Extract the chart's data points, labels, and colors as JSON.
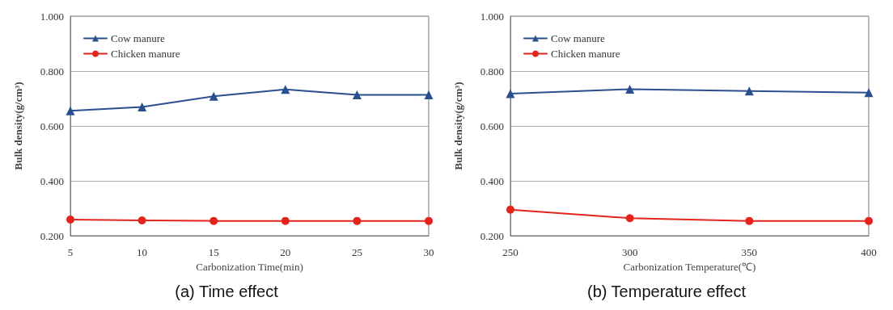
{
  "chart_data": [
    {
      "type": "line",
      "title": "(a) Time effect",
      "xlabel": "Carbonization Time(min)",
      "ylabel": "Bulk density(g/cm³)",
      "x": [
        5,
        10,
        15,
        20,
        25,
        30
      ],
      "series": [
        {
          "name": "Cow manure",
          "color": "#2a4f8f",
          "marker": "triangle",
          "values": [
            0.655,
            0.669,
            0.708,
            0.733,
            0.713,
            0.713
          ]
        },
        {
          "name": "Chicken manure",
          "color": "#e3241d",
          "marker": "circle",
          "values": [
            0.259,
            0.256,
            0.254,
            0.254,
            0.254,
            0.254
          ]
        }
      ],
      "xlim": [
        5,
        30
      ],
      "xticks": [
        5,
        10,
        15,
        20,
        25,
        30
      ],
      "ylim": [
        0.2,
        1.0
      ],
      "yticks": [
        {
          "value": 0.2,
          "label": "0.200"
        },
        {
          "value": 0.4,
          "label": "0.400"
        },
        {
          "value": 0.6,
          "label": "0.600"
        },
        {
          "value": 0.8,
          "label": "0.800"
        },
        {
          "value": 1.0,
          "label": "1.000"
        }
      ],
      "grid": "y",
      "legend": "top left"
    },
    {
      "type": "line",
      "title": "(b) Temperature effect",
      "xlabel": "Carbonization Temperature(℃)",
      "ylabel": "Bulk density(g/cm³)",
      "x": [
        250,
        300,
        350,
        400
      ],
      "series": [
        {
          "name": "Cow manure",
          "color": "#2a4f8f",
          "marker": "triangle",
          "values": [
            0.718,
            0.734,
            0.727,
            0.721
          ]
        },
        {
          "name": "Chicken manure",
          "color": "#e3241d",
          "marker": "circle",
          "values": [
            0.295,
            0.264,
            0.254,
            0.254
          ]
        }
      ],
      "xlim": [
        250,
        400
      ],
      "xticks": [
        250,
        300,
        350,
        400
      ],
      "ylim": [
        0.2,
        1.0
      ],
      "yticks": [
        {
          "value": 0.2,
          "label": "0.200"
        },
        {
          "value": 0.4,
          "label": "0.400"
        },
        {
          "value": 0.6,
          "label": "0.600"
        },
        {
          "value": 0.8,
          "label": "0.800"
        },
        {
          "value": 1.0,
          "label": "1.000"
        }
      ],
      "grid": "y",
      "legend": "top left"
    }
  ]
}
